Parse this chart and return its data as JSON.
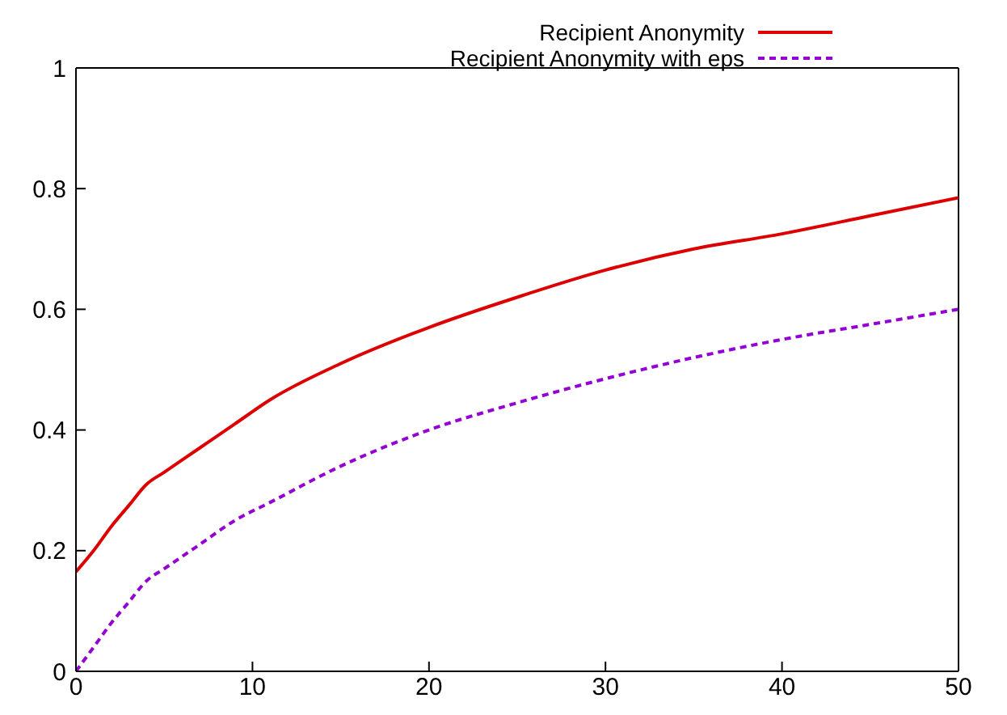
{
  "chart_data": {
    "type": "line",
    "x": [
      0,
      1,
      2,
      3,
      4,
      5,
      7,
      9,
      11,
      15,
      20,
      25,
      30,
      35,
      40,
      45,
      50
    ],
    "series": [
      {
        "name": "Recipient Anonymity",
        "color": "#dd0000",
        "line_style": "solid",
        "values": [
          0.165,
          0.2,
          0.24,
          0.275,
          0.31,
          0.33,
          0.37,
          0.41,
          0.45,
          0.51,
          0.57,
          0.62,
          0.665,
          0.7,
          0.725,
          0.755,
          0.785
        ]
      },
      {
        "name": "Recipient Anonymity with eps",
        "color": "#9400d3",
        "line_style": "dashed",
        "values": [
          0,
          0.04,
          0.08,
          0.115,
          0.15,
          0.17,
          0.21,
          0.25,
          0.28,
          0.34,
          0.4,
          0.445,
          0.485,
          0.52,
          0.55,
          0.575,
          0.6
        ]
      }
    ],
    "xlim": [
      0,
      50
    ],
    "xticks": [
      0,
      10,
      20,
      30,
      40,
      50
    ],
    "ylim": [
      0,
      1
    ],
    "yticks": [
      0,
      0.2,
      0.4,
      0.6,
      0.8,
      1
    ],
    "grid": false,
    "legend": "top",
    "marker": "none"
  }
}
